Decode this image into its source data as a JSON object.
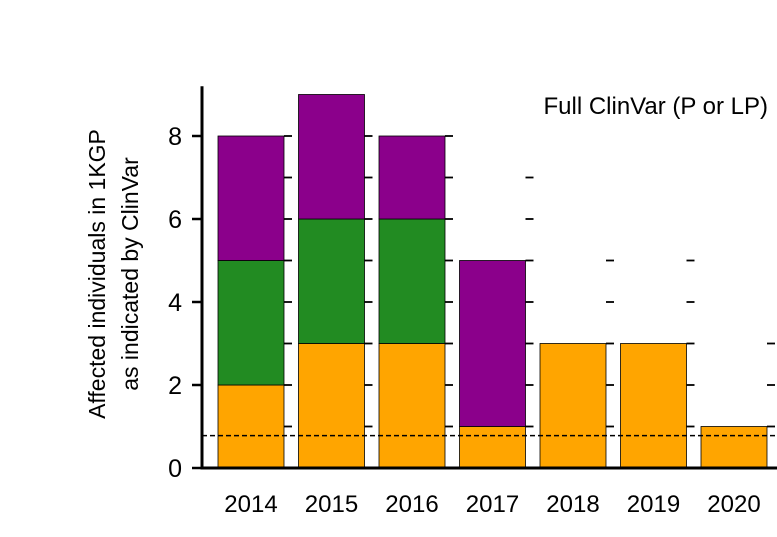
{
  "chart_data": {
    "type": "bar",
    "stacked": true,
    "title": "Full ClinVar (P or LP)",
    "xlabel": "",
    "ylabel_lines": [
      "Affected individuals in 1KGP",
      "as indicated by ClinVar"
    ],
    "categories": [
      "2014",
      "2015",
      "2016",
      "2017",
      "2018",
      "2019",
      "2020"
    ],
    "series": [
      {
        "name": "orange",
        "color": "#FFA500",
        "values": [
          2,
          3,
          3,
          1,
          3,
          3,
          1
        ]
      },
      {
        "name": "green",
        "color": "#228B22",
        "values": [
          3,
          3,
          3,
          0,
          0,
          0,
          0
        ]
      },
      {
        "name": "purple",
        "color": "#8B008B",
        "values": [
          3,
          3,
          2,
          4,
          0,
          0,
          0
        ]
      }
    ],
    "ylim": [
      0,
      9.2
    ],
    "yticks": [
      "0",
      "2",
      "4",
      "6",
      "8"
    ],
    "reference_line": {
      "value": 0.78,
      "style": "dashed"
    },
    "grid": false,
    "legend": "none"
  }
}
